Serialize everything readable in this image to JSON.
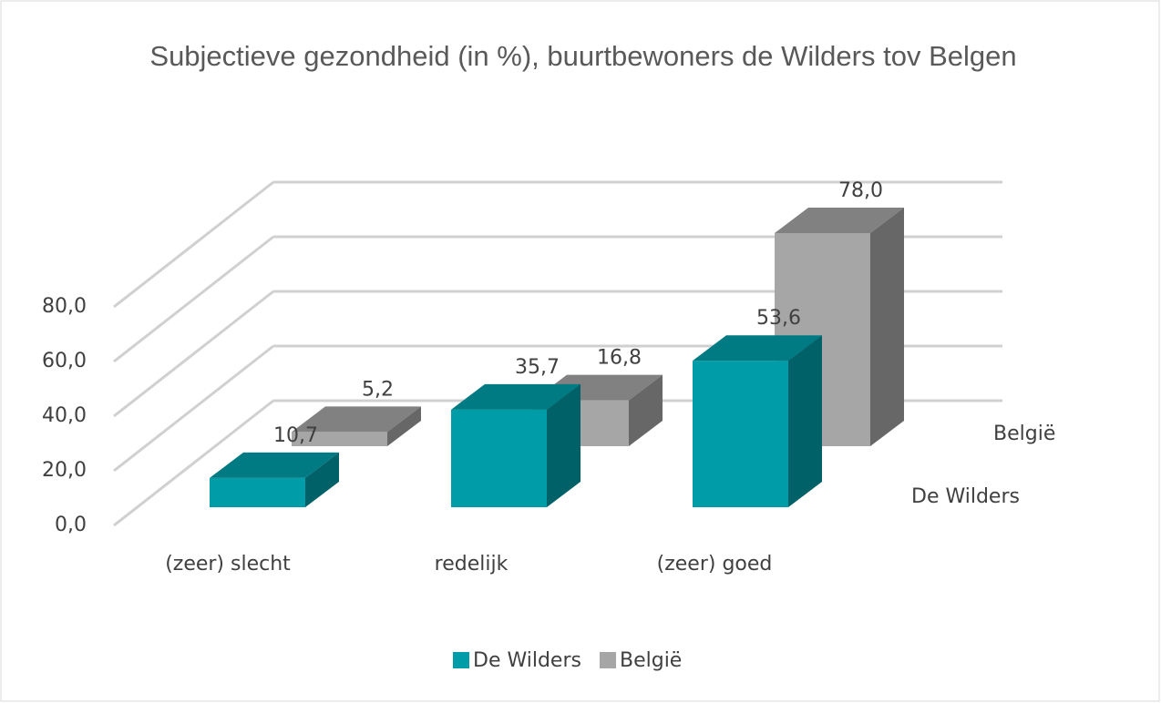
{
  "chart_data": {
    "type": "bar3d",
    "title": "Subjectieve gezondheid (in %), buurtbewoners de Wilders tov Belgen",
    "categories": [
      "(zeer) slecht",
      "redelijk",
      "(zeer) goed"
    ],
    "series": [
      {
        "name": "De Wilders",
        "color": "#009ca8",
        "values": [
          10.7,
          35.7,
          53.6
        ],
        "value_labels": [
          "10,7",
          "35,7",
          "53,6"
        ]
      },
      {
        "name": "België",
        "color": "#a6a6a6",
        "values": [
          5.2,
          16.8,
          78.0
        ],
        "value_labels": [
          "5,2",
          "16,8",
          "78,0"
        ]
      }
    ],
    "ylim": [
      0,
      80
    ],
    "yticks": [
      {
        "value": 0,
        "label": "0,0"
      },
      {
        "value": 20,
        "label": "20,0"
      },
      {
        "value": 40,
        "label": "40,0"
      },
      {
        "value": 60,
        "label": "60,0"
      },
      {
        "value": 80,
        "label": "80,0"
      }
    ],
    "grid": true,
    "legend": "bottom"
  }
}
